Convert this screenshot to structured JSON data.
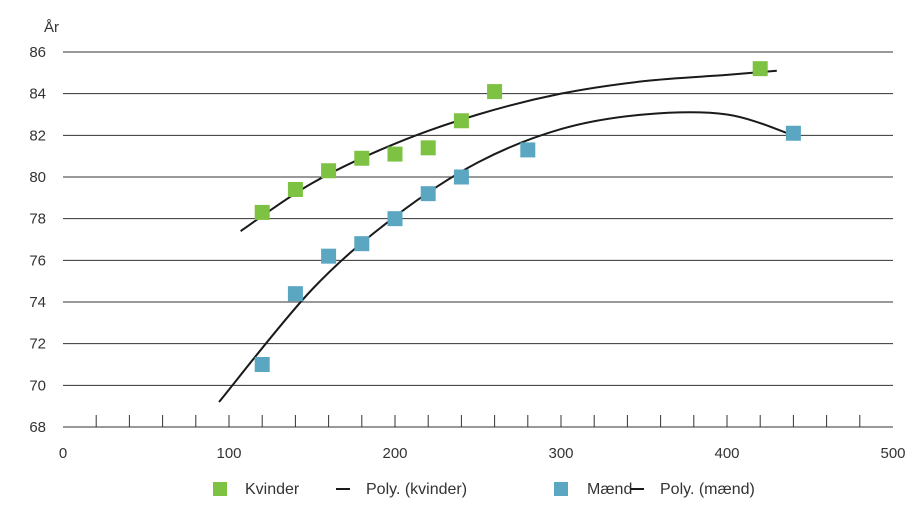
{
  "chart_data": {
    "type": "scatter",
    "title": "",
    "xlabel": "",
    "ylabel": "År",
    "xlim": [
      0,
      500
    ],
    "ylim": [
      68,
      86
    ],
    "x_ticks": [
      "0",
      "100",
      "200",
      "300",
      "400",
      "500"
    ],
    "y_ticks": [
      "68",
      "70",
      "72",
      "74",
      "76",
      "78",
      "80",
      "82",
      "84",
      "86"
    ],
    "grid": "horizontal",
    "legend_position": "bottom",
    "series": [
      {
        "name": "Kvinder",
        "kind": "points",
        "color": "#7dc242",
        "x": [
          120,
          140,
          160,
          180,
          200,
          220,
          240,
          260,
          420
        ],
        "y": [
          78.3,
          79.4,
          80.3,
          80.9,
          81.1,
          81.4,
          82.7,
          84.1,
          85.2
        ]
      },
      {
        "name": "Poly. (kvinder)",
        "kind": "line",
        "color": "#1a1a1a",
        "x": [
          107,
          150,
          200,
          250,
          300,
          350,
          400,
          430
        ],
        "y": [
          77.4,
          79.7,
          81.6,
          83.0,
          84.0,
          84.6,
          84.9,
          85.1
        ]
      },
      {
        "name": "Mænd",
        "kind": "points",
        "color": "#5ba7c2",
        "x": [
          120,
          140,
          160,
          180,
          200,
          220,
          240,
          280,
          440
        ],
        "y": [
          71.0,
          74.4,
          76.2,
          76.8,
          78.0,
          79.2,
          80.0,
          81.3,
          82.1
        ]
      },
      {
        "name": "Poly. (mænd)",
        "kind": "line",
        "color": "#1a1a1a",
        "x": [
          94,
          150,
          200,
          250,
          300,
          350,
          400,
          440
        ],
        "y": [
          69.2,
          74.6,
          78.1,
          80.7,
          82.3,
          83.0,
          83.0,
          82.0
        ]
      }
    ]
  }
}
